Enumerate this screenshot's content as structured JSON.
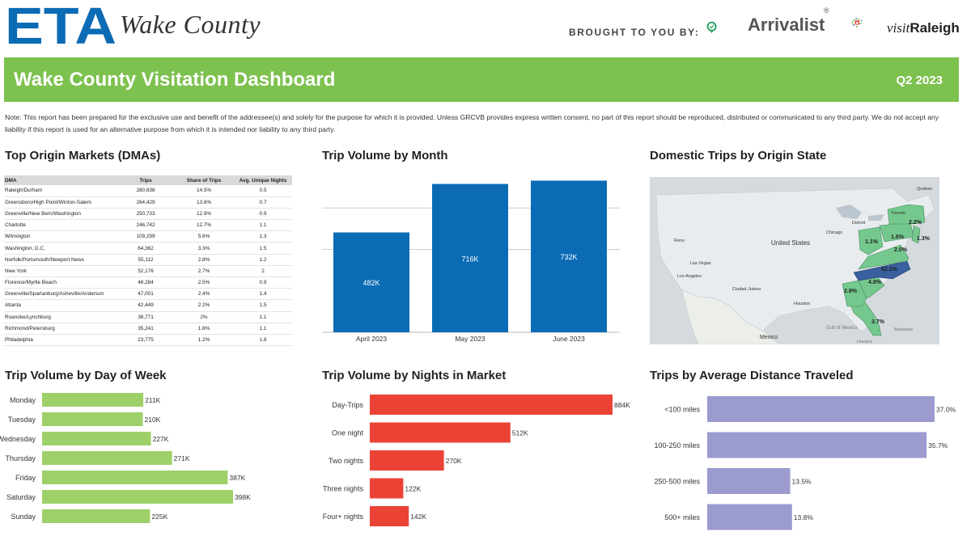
{
  "header": {
    "eta_logo_text": "ETA",
    "eta_subtitle": "Wake County",
    "brought_by": "BROUGHT TO YOU BY:",
    "arrivalist_name": "Arrivalist",
    "arrivalist_mark": "®",
    "visit_prefix": "visit",
    "visit_city": "Raleigh"
  },
  "banner": {
    "title": "Wake County Visitation Dashboard",
    "quarter": "Q2 2023"
  },
  "note": "Note: This report has been prepared for the exclusive use and benefit of the addressee(s) and solely for the purpose for which it is provided. Unless GRCVB provides express written consent,  no part of this report should be reproduced, distributed or communicated to any third party. We do not accept any liability if this report is used for an alternative purpose from which it is intended nor liability to any third party.",
  "colors": {
    "green": "#7dc14f",
    "blue": "#0b6bb5",
    "lightgreen": "#9ed06a",
    "red": "#ea4336",
    "lavender": "#9b9bcf",
    "map_green": "#74c88d",
    "map_blue": "#3a5f9e"
  },
  "dma_table": {
    "title": "Top Origin Markets (DMAs)",
    "headers": [
      "DMA",
      "Trips",
      "Share of Trips",
      "Avg. Unique Nights"
    ],
    "rows": [
      [
        "Raleigh/Durham",
        "280,638",
        "14.5%",
        "0.5"
      ],
      [
        "Greensboro/High Point/Winton-Salem",
        "264,429",
        "13.6%",
        "0.7"
      ],
      [
        "Greenville/New Bern/Washington",
        "250,733",
        "12.9%",
        "0.9"
      ],
      [
        "Charlotte",
        "246,742",
        "12.7%",
        "1.1"
      ],
      [
        "Wilmington",
        "109,299",
        "5.6%",
        "1.3"
      ],
      [
        "Washington, D.C.",
        "64,362",
        "3.3%",
        "1.5"
      ],
      [
        "Norfolk/Portsmouth/Newport News",
        "55,112",
        "2.8%",
        "1.2"
      ],
      [
        "New York",
        "52,176",
        "2.7%",
        "2"
      ],
      [
        "Florence/Myrtle Beach",
        "48,284",
        "2.5%",
        "0.9"
      ],
      [
        "Greenville/Spartanburg/Asheville/Anderson",
        "47,001",
        "2.4%",
        "1.4"
      ],
      [
        "Atlanta",
        "42,449",
        "2.2%",
        "1.5"
      ],
      [
        "Roanoke/Lynchburg",
        "38,771",
        "2%",
        "1.1"
      ],
      [
        "Richmond/Petersburg",
        "35,241",
        "1.8%",
        "1.1"
      ],
      [
        "Philadelphia",
        "23,775",
        "1.2%",
        "1.8"
      ]
    ]
  },
  "map": {
    "title": "Domestic Trips by Origin State",
    "labels": {
      "country": "United States",
      "mexico": "Mexico",
      "gulf": "Gulf of Mexico",
      "bahamas": "Bahamas",
      "havana": "Havana",
      "toronto": "Toronto",
      "chicago": "Chicago",
      "detroit": "Detroit",
      "houston": "Houston",
      "la": "Los Angeles",
      "lasvegas": "Las Vegas",
      "reno": "Reno",
      "ciudad": "Ciudad Juárez",
      "quebec": "Québec"
    },
    "state_labels": [
      {
        "name": "NY",
        "value": "2.2%"
      },
      {
        "name": "PA",
        "value": "1.6%"
      },
      {
        "name": "NJ",
        "value": "1.3%"
      },
      {
        "name": "OH",
        "value": "1.1%"
      },
      {
        "name": "VA",
        "value": "2.0%"
      },
      {
        "name": "NC",
        "value": "62.2%"
      },
      {
        "name": "SC",
        "value": "4.8%"
      },
      {
        "name": "GA",
        "value": "2.9%"
      },
      {
        "name": "FL",
        "value": "3.7%"
      }
    ]
  },
  "chart_data": [
    {
      "id": "month",
      "type": "bar",
      "title": "Trip Volume by Month",
      "categories": [
        "April 2023",
        "May 2023",
        "June 2023"
      ],
      "values": [
        482000,
        716000,
        732000
      ],
      "value_labels": [
        "482K",
        "716K",
        "732K"
      ],
      "ylim": [
        0,
        800000
      ],
      "gridlines": [
        400000,
        600000
      ],
      "xlabel": "",
      "ylabel": ""
    },
    {
      "id": "dow",
      "type": "bar",
      "orientation": "horizontal",
      "title": "Trip Volume by Day of Week",
      "categories": [
        "Monday",
        "Tuesday",
        "Wednesday",
        "Thursday",
        "Friday",
        "Saturday",
        "Sunday"
      ],
      "values": [
        211000,
        210000,
        227000,
        271000,
        387000,
        398000,
        225000
      ],
      "value_labels": [
        "211K",
        "210K",
        "227K",
        "271K",
        "387K",
        "398K",
        "225K"
      ],
      "xlim": [
        0,
        420000
      ]
    },
    {
      "id": "nights",
      "type": "bar",
      "orientation": "horizontal",
      "title": "Trip Volume by Nights in Market",
      "categories": [
        "Day-Trips",
        "One night",
        "Two nights",
        "Three nights",
        "Four+ nights"
      ],
      "values": [
        884000,
        512000,
        270000,
        122000,
        142000
      ],
      "value_labels": [
        "884K",
        "512K",
        "270K",
        "122K",
        "142K"
      ],
      "xlim": [
        0,
        884000
      ]
    },
    {
      "id": "distance",
      "type": "bar",
      "orientation": "horizontal",
      "title": "Trips by Average Distance Traveled",
      "categories": [
        "<100 miles",
        "100-250 miles",
        "250-500 miles",
        "500+ miles"
      ],
      "values": [
        37.0,
        35.7,
        13.5,
        13.8
      ],
      "value_labels": [
        "37.0%",
        "35.7%",
        "13.5%",
        "13.8%"
      ],
      "xlim": [
        0,
        37.0
      ]
    }
  ]
}
